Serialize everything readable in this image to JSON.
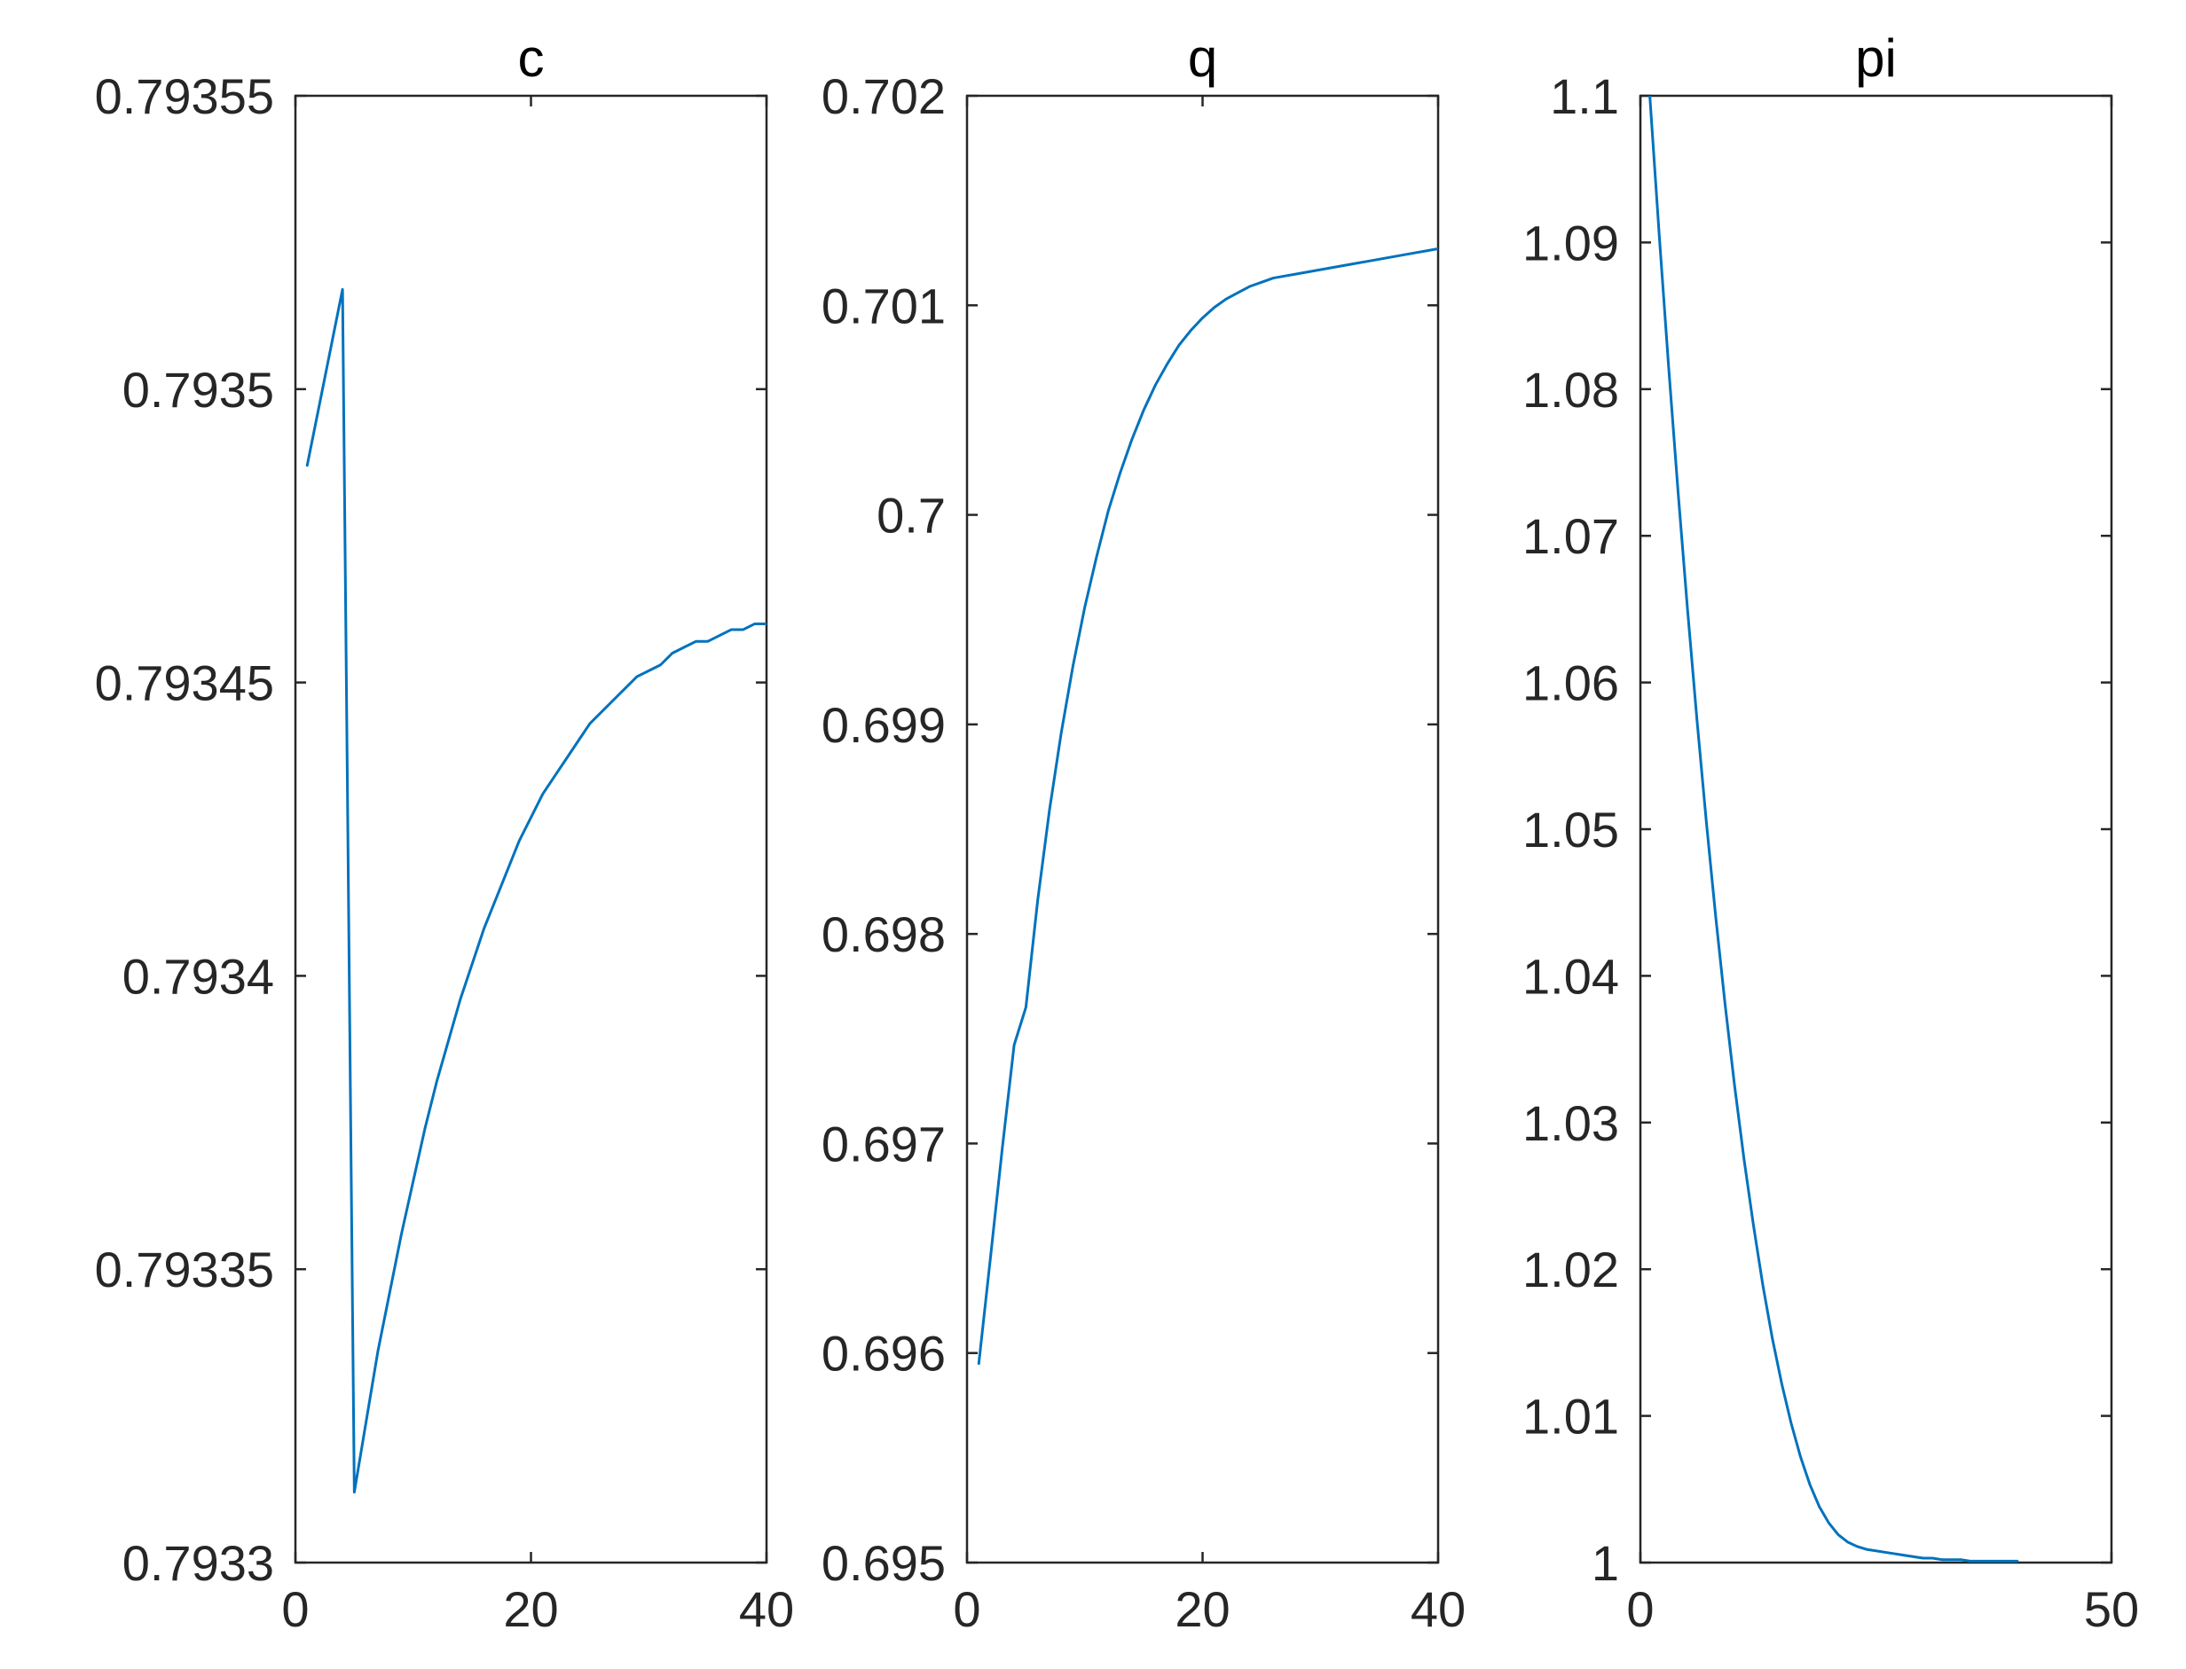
{
  "colors": {
    "series": "#0072BD",
    "axes": "#262626",
    "background": "#ffffff"
  },
  "chart_data": [
    {
      "type": "line",
      "title": "c",
      "xlabel": "",
      "ylabel": "",
      "xlim": [
        0,
        40
      ],
      "ylim": [
        0.7933,
        0.79355
      ],
      "xticks": [
        0,
        20,
        40
      ],
      "xtick_labels": [
        "0",
        "20",
        "40"
      ],
      "yticks": [
        0.7933,
        0.79335,
        0.7934,
        0.79345,
        0.7935,
        0.79355
      ],
      "ytick_labels": [
        "0.7933",
        "0.79335",
        "0.7934",
        "0.79345",
        "0.7935",
        "0.79355"
      ],
      "grid": false,
      "series": [
        {
          "x": [
            1,
            2,
            3,
            4,
            5,
            6,
            7,
            8,
            9,
            10,
            11,
            12,
            13,
            14,
            15,
            16,
            17,
            18,
            19,
            20,
            21,
            22,
            23,
            24,
            25,
            26,
            27,
            28,
            29,
            30,
            31,
            32,
            33,
            34,
            35,
            36,
            37,
            38,
            39,
            40
          ],
          "y": [
            0.793487,
            0.793497,
            0.793507,
            0.793517,
            0.793312,
            0.793324,
            0.793336,
            0.793346,
            0.793356,
            0.793365,
            0.793374,
            0.793382,
            0.793389,
            0.793396,
            0.793402,
            0.793408,
            0.793413,
            0.793418,
            0.793423,
            0.793427,
            0.793431,
            0.793434,
            0.793437,
            0.79344,
            0.793443,
            0.793445,
            0.793447,
            0.793449,
            0.793451,
            0.793452,
            0.793453,
            0.793455,
            0.793456,
            0.793457,
            0.793457,
            0.793458,
            0.793459,
            0.793459,
            0.79346,
            0.79346
          ]
        }
      ]
    },
    {
      "type": "line",
      "title": "q",
      "xlabel": "",
      "ylabel": "",
      "xlim": [
        0,
        40
      ],
      "ylim": [
        0.695,
        0.702
      ],
      "xticks": [
        0,
        20,
        40
      ],
      "xtick_labels": [
        "0",
        "20",
        "40"
      ],
      "yticks": [
        0.695,
        0.696,
        0.697,
        0.698,
        0.699,
        0.7,
        0.701,
        0.702
      ],
      "ytick_labels": [
        "0.695",
        "0.696",
        "0.697",
        "0.698",
        "0.699",
        "0.7",
        "0.701",
        "0.702"
      ],
      "grid": false,
      "series": [
        {
          "x": [
            1,
            2,
            3,
            4,
            5,
            6,
            7,
            8,
            9,
            10,
            11,
            12,
            13,
            14,
            15,
            16,
            17,
            18,
            19,
            20,
            21,
            22,
            23,
            24,
            25,
            26,
            27,
            28,
            29,
            30,
            31,
            32,
            33,
            34,
            35,
            36,
            37,
            38,
            39,
            40
          ],
          "y": [
            0.69595,
            0.69646,
            0.69698,
            0.69747,
            0.69765,
            0.69816,
            0.69859,
            0.69896,
            0.69928,
            0.69956,
            0.6998,
            0.70002,
            0.7002,
            0.70036,
            0.7005,
            0.70062,
            0.70072,
            0.70081,
            0.70088,
            0.70094,
            0.70099,
            0.70103,
            0.70106,
            0.70109,
            0.70111,
            0.70113,
            0.70114,
            0.70115,
            0.70116,
            0.70117,
            0.70118,
            0.70119,
            0.7012,
            0.70121,
            0.70122,
            0.70123,
            0.70124,
            0.70125,
            0.70126,
            0.70127
          ]
        }
      ]
    },
    {
      "type": "line",
      "title": "pi",
      "xlabel": "",
      "ylabel": "",
      "xlim": [
        0,
        50
      ],
      "ylim": [
        1,
        1.1
      ],
      "xticks": [
        0,
        50
      ],
      "xtick_labels": [
        "0",
        "50"
      ],
      "yticks": [
        1,
        1.01,
        1.02,
        1.03,
        1.04,
        1.05,
        1.06,
        1.07,
        1.08,
        1.09,
        1.1
      ],
      "ytick_labels": [
        "1",
        "1.01",
        "1.02",
        "1.03",
        "1.04",
        "1.05",
        "1.06",
        "1.07",
        "1.08",
        "1.09",
        "1.1"
      ],
      "grid": false,
      "series": [
        {
          "x": [
            1,
            2,
            3,
            4,
            5,
            6,
            7,
            8,
            9,
            10,
            11,
            12,
            13,
            14,
            15,
            16,
            17,
            18,
            19,
            20,
            21,
            22,
            23,
            24,
            25,
            26,
            27,
            28,
            29,
            30,
            31,
            32,
            33,
            34,
            35,
            36,
            37,
            38,
            39,
            40
          ],
          "y": [
            1.1,
            1.0905,
            1.0815,
            1.073,
            1.065,
            1.0575,
            1.0505,
            1.044,
            1.038,
            1.0325,
            1.0275,
            1.023,
            1.0189,
            1.0153,
            1.0122,
            1.0095,
            1.0072,
            1.0053,
            1.0038,
            1.0027,
            1.0019,
            1.0014,
            1.0011,
            1.0009,
            1.0008,
            1.0007,
            1.0006,
            1.0005,
            1.0004,
            1.0003,
            1.0003,
            1.0002,
            1.0002,
            1.0002,
            1.0001,
            1.0001,
            1.0001,
            1.0001,
            1.0001,
            1.0001
          ]
        }
      ]
    }
  ]
}
